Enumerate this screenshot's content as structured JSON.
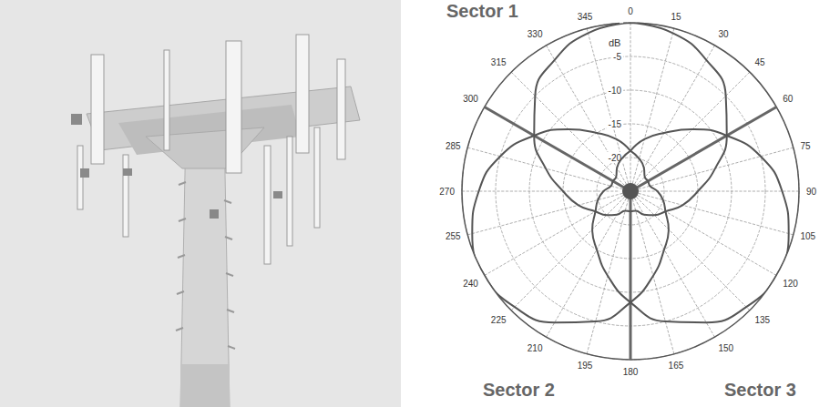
{
  "chart_data": {
    "type": "polar",
    "x": [
      0,
      15,
      30,
      45,
      60,
      75,
      90,
      105,
      120,
      135,
      150,
      165,
      180,
      195,
      210,
      225,
      240,
      255,
      270,
      285,
      300,
      315,
      330,
      345,
      360
    ],
    "xlim": [
      0,
      360
    ],
    "xticks": [
      0,
      15,
      30,
      45,
      60,
      75,
      90,
      105,
      120,
      135,
      150,
      165,
      180,
      195,
      210,
      225,
      240,
      255,
      270,
      285,
      300,
      315,
      330,
      345
    ],
    "ylim": [
      -25,
      0
    ],
    "yticks": [
      -20,
      -15,
      -10,
      -5
    ],
    "grid": true,
    "annotations": [
      "dB"
    ],
    "sector_boundaries": [
      60,
      180,
      300
    ],
    "series": [
      {
        "name": "Sector 1",
        "color": "#555555",
        "values": [
          0,
          -0.7,
          -2.5,
          -5,
          -8.5,
          -12,
          -15,
          -17,
          -19,
          -20,
          -21,
          -22,
          -22,
          -22,
          -21,
          -20,
          -19,
          -17,
          -15,
          -12,
          -8.5,
          -5,
          -2.5,
          -0.7,
          0
        ]
      },
      {
        "name": "Sector 2",
        "color": "#555555",
        "values": [
          -19,
          -20,
          -21,
          -22,
          -22,
          -22,
          -21,
          -20,
          -19,
          -17,
          -15,
          -12,
          -8.5,
          -5,
          -2.5,
          -0.7,
          0,
          -0.7,
          -2.5,
          -5,
          -8.5,
          -12,
          -15,
          -17,
          -19
        ]
      },
      {
        "name": "Sector 3",
        "color": "#555555",
        "values": [
          -19,
          -17,
          -15,
          -12,
          -8.5,
          -5,
          -2.5,
          -0.7,
          0,
          -0.7,
          -2.5,
          -5,
          -8.5,
          -12,
          -15,
          -17,
          -19,
          -20,
          -21,
          -22,
          -22,
          -22,
          -21,
          -20,
          -19
        ]
      }
    ]
  }
}
